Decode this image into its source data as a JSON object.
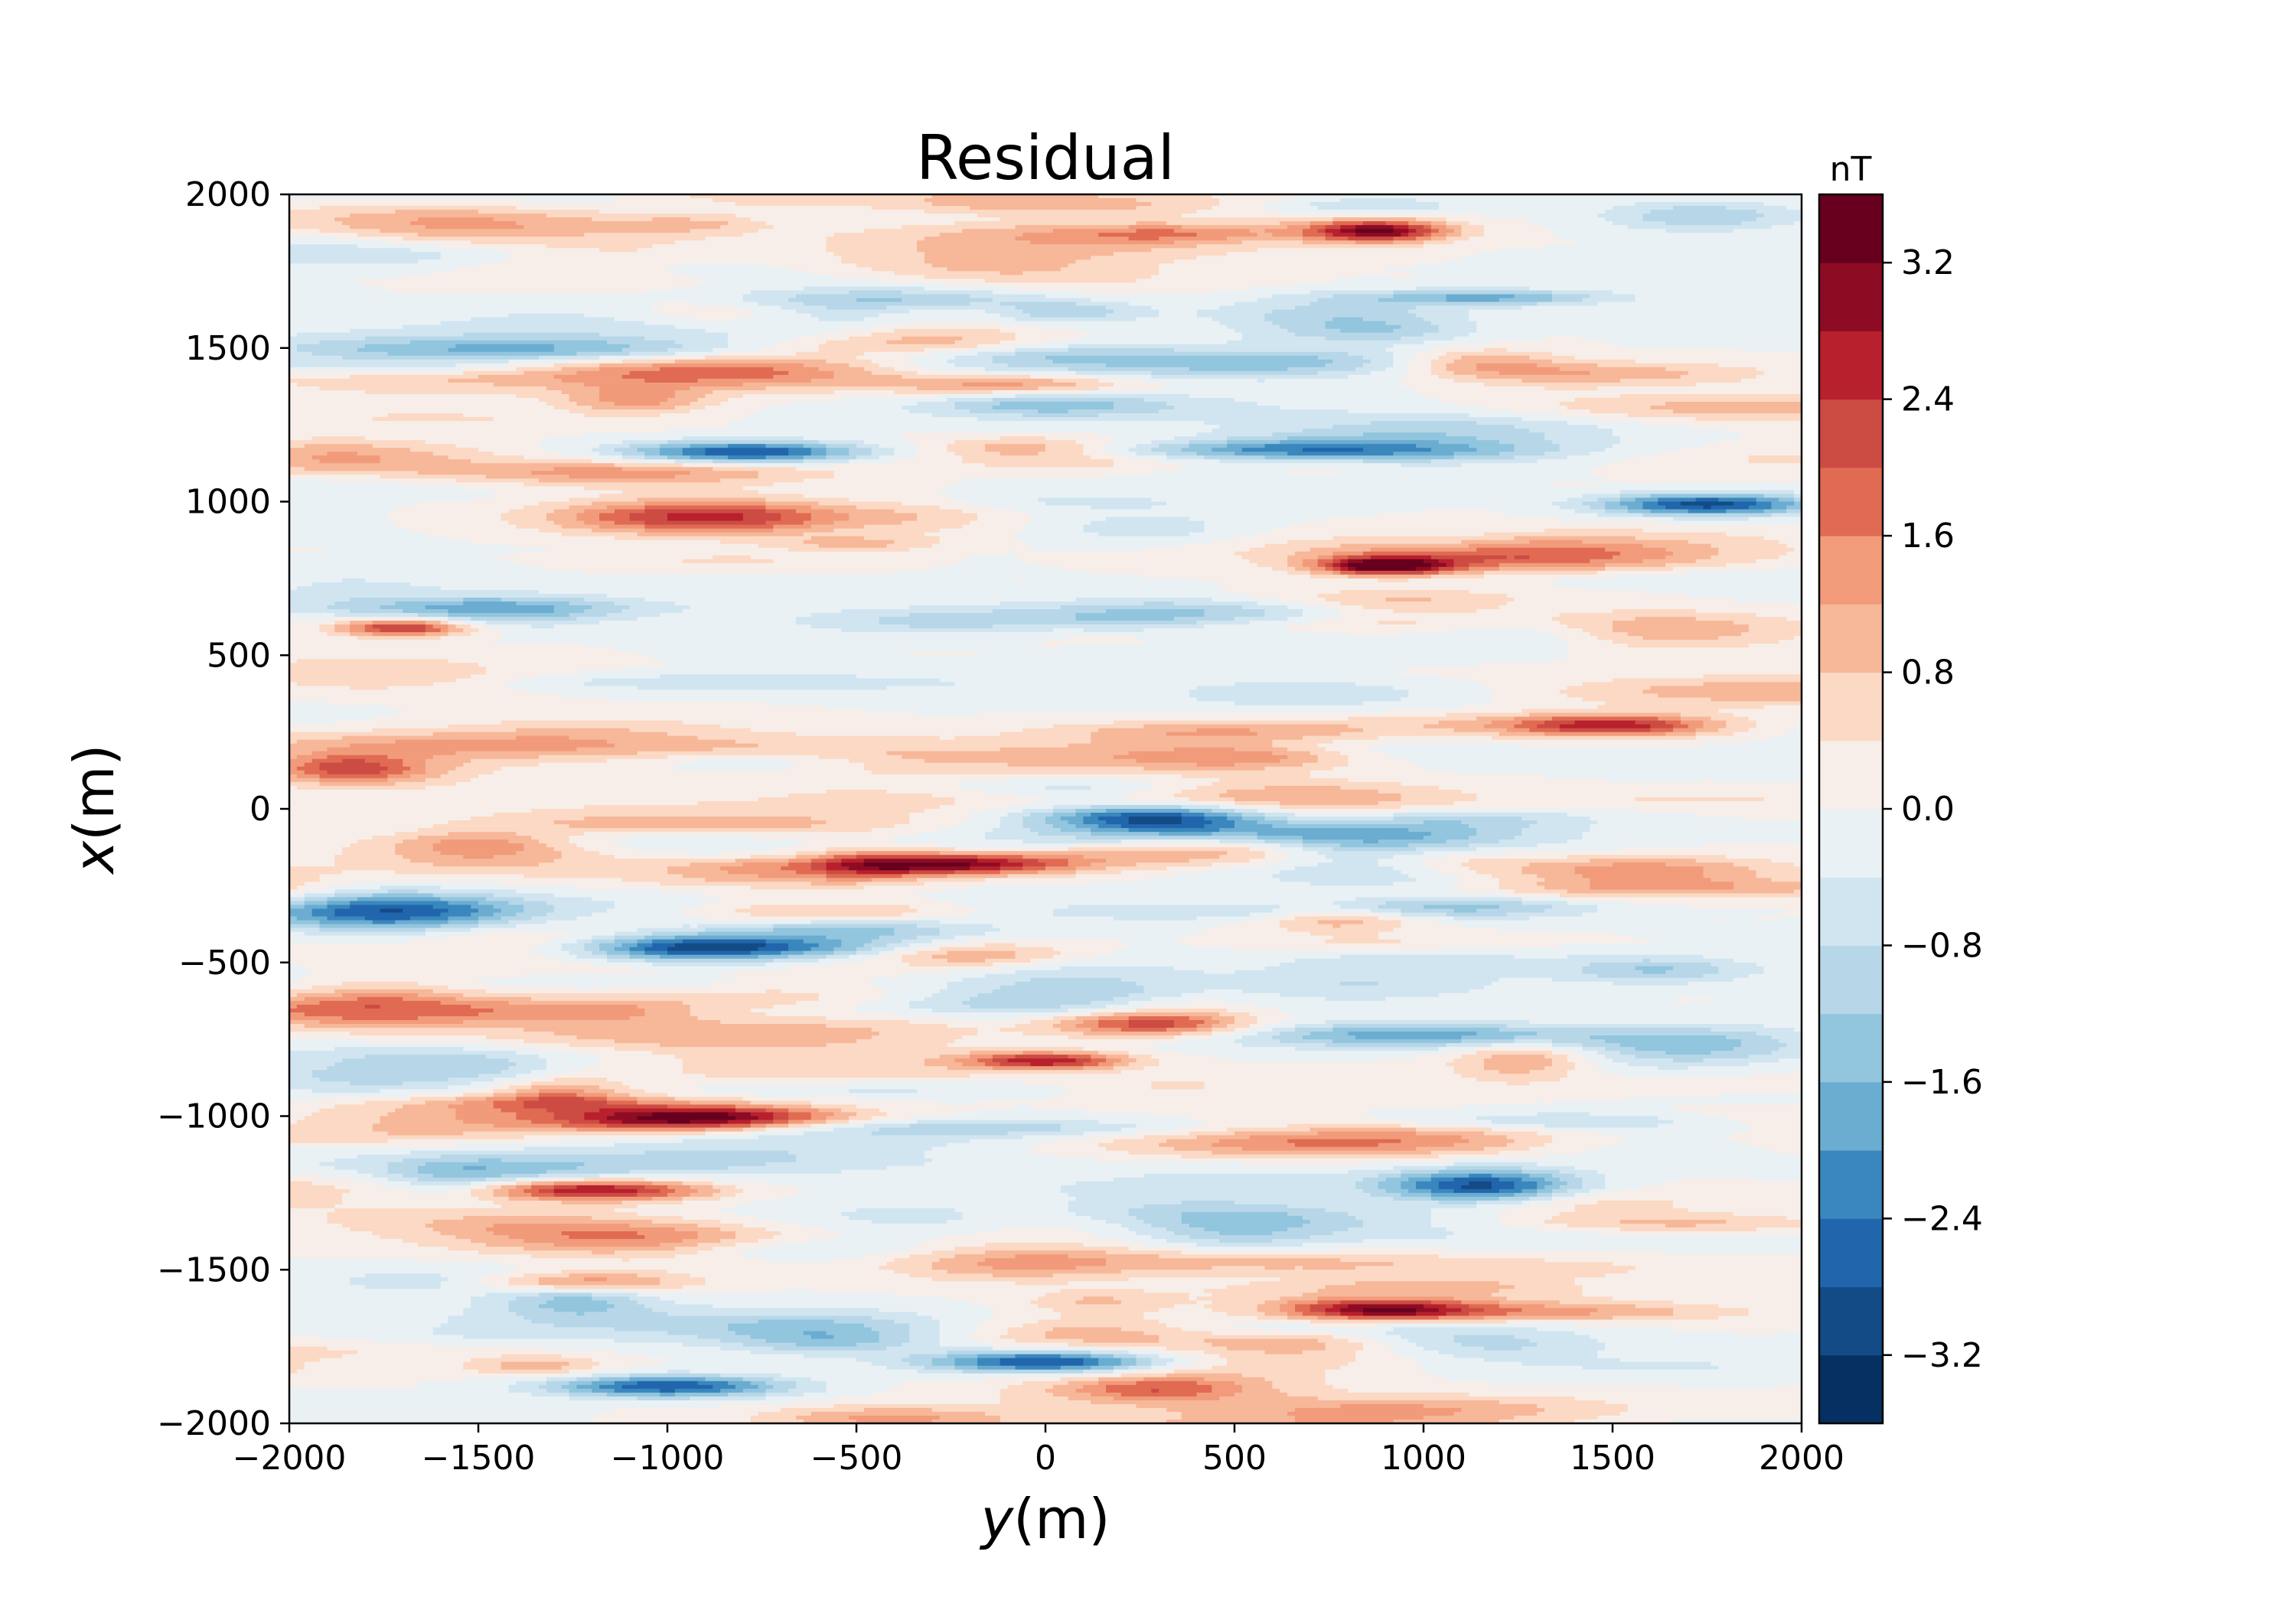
{
  "chart_data": {
    "type": "heatmap",
    "subtype": "filled-contour",
    "title": "Residual",
    "xlabel": {
      "var": "y",
      "unit": "(m)"
    },
    "ylabel": {
      "var": "x",
      "unit": "(m)"
    },
    "xlim": [
      -2000,
      2000
    ],
    "ylim": [
      -2000,
      2000
    ],
    "x_ticks": [
      -2000,
      -1500,
      -1000,
      -500,
      0,
      500,
      1000,
      1500,
      2000
    ],
    "x_tick_labels": [
      "−2000",
      "−1500",
      "−1000",
      "−500",
      "0",
      "500",
      "1000",
      "1500",
      "2000"
    ],
    "y_ticks": [
      -2000,
      -1500,
      -1000,
      -500,
      0,
      500,
      1000,
      1500,
      2000
    ],
    "y_tick_labels": [
      "−2000",
      "−1500",
      "−1000",
      "−500",
      "0",
      "500",
      "1000",
      "1500",
      "2000"
    ],
    "grid": false,
    "colorbar": {
      "unit": "nT",
      "vmin": -3.6,
      "vmax": 3.6,
      "levels": [
        -3.6,
        -3.2,
        -2.8,
        -2.4,
        -2.0,
        -1.6,
        -1.2,
        -0.8,
        -0.4,
        0.0,
        0.4,
        0.8,
        1.2,
        1.6,
        2.0,
        2.4,
        2.8,
        3.2,
        3.6
      ],
      "colors": [
        "#053061",
        "#134b87",
        "#2166ac",
        "#3a87bd",
        "#6bacd1",
        "#92c5de",
        "#b7d7e8",
        "#d1e5f0",
        "#e9f1f5",
        "#f7eee9",
        "#fbd9c4",
        "#f7b799",
        "#f19b7b",
        "#e06b52",
        "#cc4c44",
        "#b8202d",
        "#8d0c24",
        "#67001f"
      ],
      "ticks": [
        -3.2,
        -2.4,
        -1.6,
        -0.8,
        0.0,
        0.8,
        1.6,
        2.4,
        3.2
      ],
      "tick_labels": [
        "−3.2",
        "−2.4",
        "−1.6",
        "−0.8",
        "0.0",
        "0.8",
        "1.6",
        "2.4",
        "3.2"
      ]
    },
    "field": {
      "description_of_pattern": "streaky residual field elongated along y",
      "anomalies": [
        {
          "y": 880,
          "x": 1880,
          "amp": 3.0,
          "sy": 130,
          "sx": 25
        },
        {
          "y": -800,
          "x": 1160,
          "amp": -3.0,
          "sy": 220,
          "sx": 25
        },
        {
          "y": 1750,
          "x": 990,
          "amp": -3.0,
          "sy": 200,
          "sx": 25
        },
        {
          "y": -900,
          "x": 950,
          "amp": 2.6,
          "sy": 280,
          "sx": 40
        },
        {
          "y": 900,
          "x": 790,
          "amp": 3.4,
          "sy": 120,
          "sx": 20
        },
        {
          "y": 300,
          "x": -30,
          "amp": -3.2,
          "sy": 220,
          "sx": 30
        },
        {
          "y": -250,
          "x": -180,
          "amp": 3.0,
          "sy": 230,
          "sx": 25
        },
        {
          "y": -1730,
          "x": -340,
          "amp": -3.2,
          "sy": 280,
          "sx": 45
        },
        {
          "y": -900,
          "x": -1000,
          "amp": 3.0,
          "sy": 250,
          "sx": 25
        },
        {
          "y": 1150,
          "x": -1230,
          "amp": -3.0,
          "sy": 180,
          "sx": 40
        },
        {
          "y": -1200,
          "x": -1240,
          "amp": 3.0,
          "sy": 220,
          "sx": 25
        },
        {
          "y": 0,
          "x": -1800,
          "amp": -3.0,
          "sy": 220,
          "sx": 25
        },
        {
          "y": 1500,
          "x": 270,
          "amp": 2.6,
          "sy": 200,
          "sx": 25
        },
        {
          "y": 0,
          "x": -820,
          "amp": 2.6,
          "sy": 150,
          "sx": 20
        },
        {
          "y": 280,
          "x": -700,
          "amp": 2.2,
          "sy": 180,
          "sx": 30
        },
        {
          "y": -1700,
          "x": 590,
          "amp": 2.6,
          "sy": 120,
          "sx": 20
        },
        {
          "y": 880,
          "x": -1630,
          "amp": 2.6,
          "sy": 180,
          "sx": 25
        },
        {
          "y": -1000,
          "x": -1880,
          "amp": -2.8,
          "sy": 220,
          "sx": 25
        },
        {
          "y": -1250,
          "x": -1540,
          "amp": 2.4,
          "sy": 200,
          "sx": 25
        }
      ]
    }
  }
}
